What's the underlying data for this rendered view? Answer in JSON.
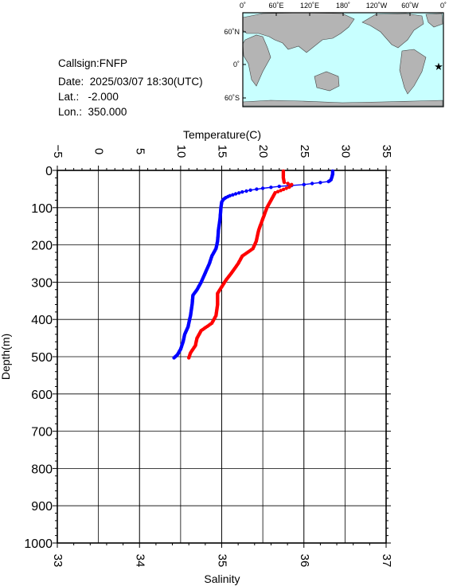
{
  "station": {
    "callsign_label": "Callsign:",
    "callsign": "FNFP",
    "date_label": "Date:",
    "date": "2025/03/07 18:30(UTC)",
    "lat_label": "Lat.:",
    "lat": "-2.000",
    "lon_label": "Lon.:",
    "lon": "350.000"
  },
  "map": {
    "lon_ticks": [
      "0˚",
      "60˚E",
      "120˚E",
      "180˚",
      "120˚W",
      "60˚W",
      "0˚"
    ],
    "lat_ticks": [
      "60˚N",
      "0˚",
      "60˚S"
    ],
    "marker_symbol": "★",
    "marker_color": "#ff0000",
    "ocean_color": "#c8ffff",
    "land_color": "#b4b4b4"
  },
  "chart_data": {
    "type": "line",
    "grid": true,
    "top_axis": {
      "label": "Temperature(C)",
      "range": [
        -5,
        35
      ],
      "ticks": [
        "−5",
        "0",
        "5",
        "10",
        "15",
        "20",
        "25",
        "30",
        "35"
      ]
    },
    "bottom_axis": {
      "label": "Salinity",
      "range": [
        33,
        37
      ],
      "ticks": [
        "33",
        "34",
        "35",
        "36",
        "37"
      ]
    },
    "y_axis": {
      "label": "Depth(m)",
      "range": [
        0,
        1000
      ],
      "inverted": true,
      "ticks": [
        "0",
        "100",
        "200",
        "300",
        "400",
        "500",
        "600",
        "700",
        "800",
        "900",
        "1000"
      ]
    },
    "series": [
      {
        "color": "#0000ff",
        "axis": "top",
        "points": [
          [
            28.5,
            2
          ],
          [
            28.5,
            10
          ],
          [
            28.4,
            18
          ],
          [
            28.3,
            25
          ],
          [
            28.0,
            30
          ],
          [
            25.0,
            38
          ],
          [
            22.0,
            43
          ],
          [
            20.0,
            48
          ],
          [
            18.5,
            53
          ],
          [
            17.5,
            58
          ],
          [
            16.7,
            63
          ],
          [
            16.0,
            68
          ],
          [
            15.5,
            73
          ],
          [
            15.2,
            78
          ],
          [
            15.0,
            85
          ],
          [
            14.9,
            100
          ],
          [
            14.8,
            130
          ],
          [
            14.6,
            160
          ],
          [
            14.5,
            190
          ],
          [
            14.3,
            210
          ],
          [
            13.8,
            230
          ],
          [
            13.5,
            250
          ],
          [
            13.0,
            275
          ],
          [
            12.5,
            300
          ],
          [
            12.0,
            320
          ],
          [
            11.5,
            335
          ],
          [
            11.4,
            360
          ],
          [
            11.2,
            390
          ],
          [
            10.9,
            420
          ],
          [
            10.5,
            440
          ],
          [
            10.3,
            460
          ],
          [
            10.0,
            480
          ],
          [
            9.6,
            495
          ],
          [
            9.2,
            503
          ]
        ]
      },
      {
        "color": "#ff0000",
        "axis": "bottom",
        "points": [
          [
            35.75,
            2
          ],
          [
            35.75,
            20
          ],
          [
            35.76,
            32
          ],
          [
            35.85,
            38
          ],
          [
            35.82,
            45
          ],
          [
            35.65,
            60
          ],
          [
            35.6,
            80
          ],
          [
            35.55,
            100
          ],
          [
            35.5,
            130
          ],
          [
            35.45,
            160
          ],
          [
            35.42,
            190
          ],
          [
            35.38,
            210
          ],
          [
            35.25,
            230
          ],
          [
            35.2,
            250
          ],
          [
            35.12,
            275
          ],
          [
            35.05,
            295
          ],
          [
            34.95,
            330
          ],
          [
            34.95,
            360
          ],
          [
            34.93,
            390
          ],
          [
            34.88,
            410
          ],
          [
            34.75,
            430
          ],
          [
            34.7,
            450
          ],
          [
            34.68,
            470
          ],
          [
            34.62,
            490
          ],
          [
            34.6,
            503
          ]
        ]
      }
    ]
  }
}
